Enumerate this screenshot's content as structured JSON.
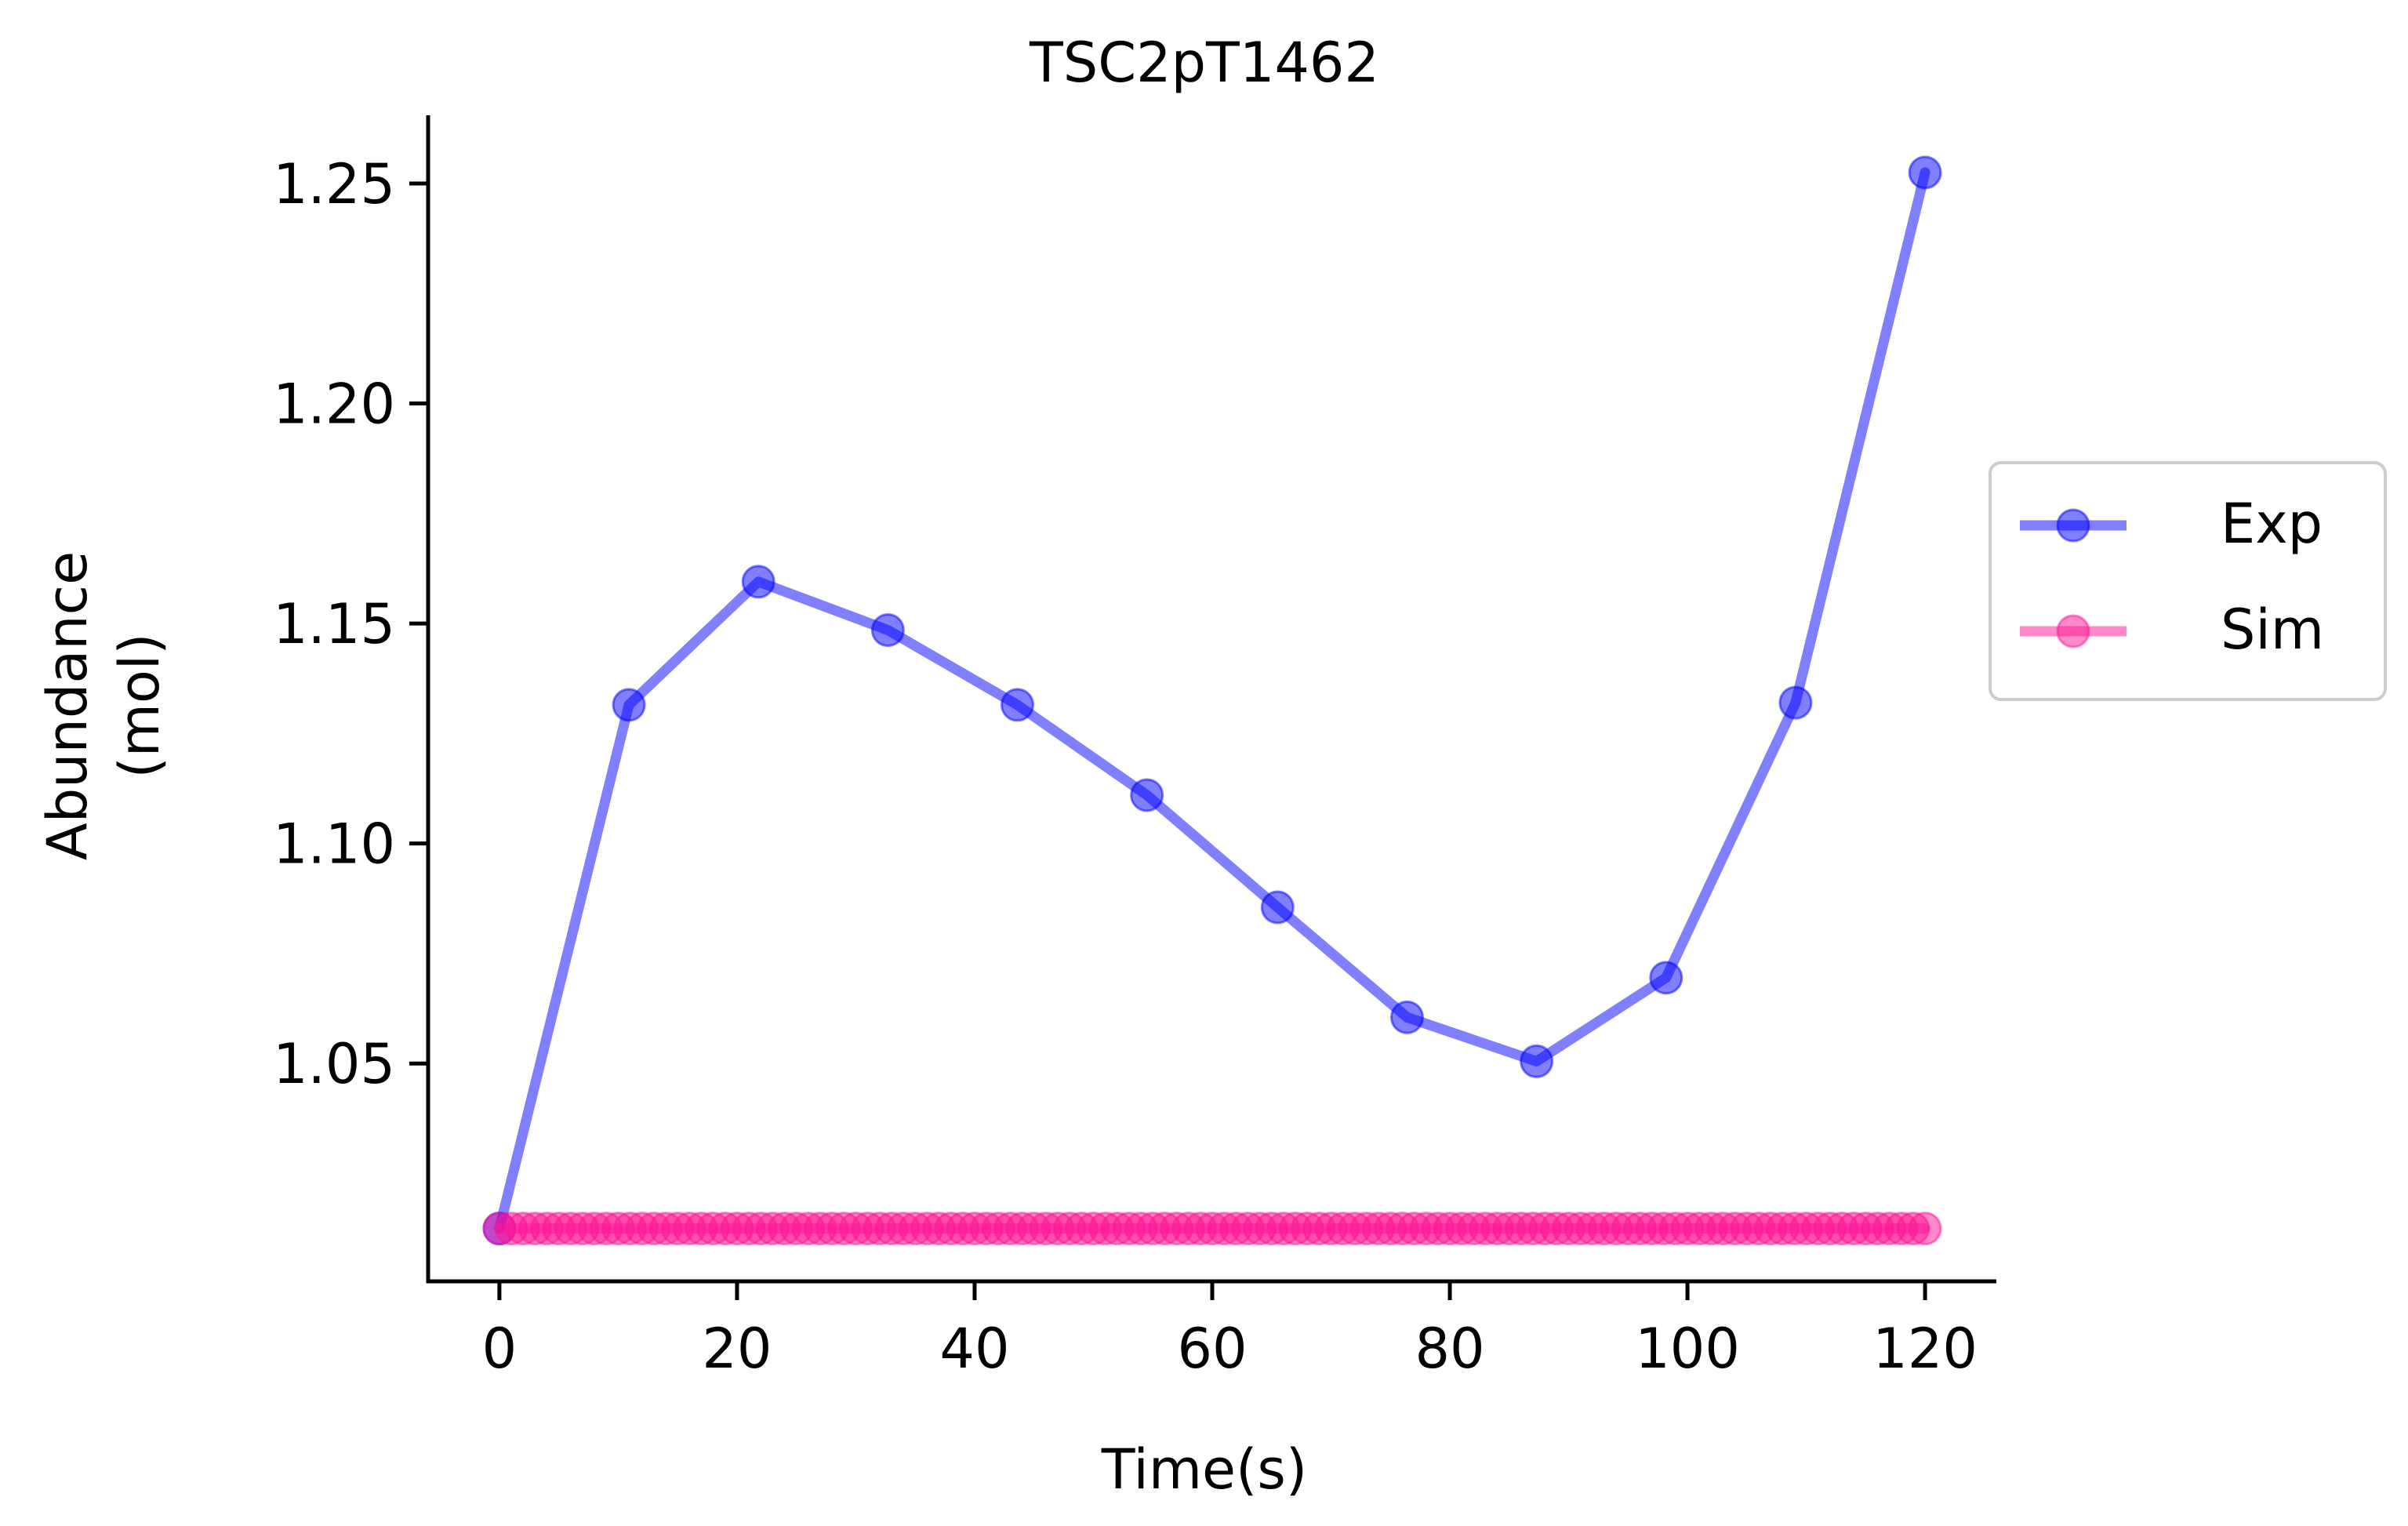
{
  "chart_data": {
    "type": "line",
    "title": "TSC2pT1462",
    "xlabel": "Time(s)",
    "ylabel_lines": [
      "Abundance",
      "(mol)"
    ],
    "xlim": [
      -6,
      126
    ],
    "ylim": [
      1.0005,
      1.2655
    ],
    "xticks": [
      0,
      20,
      40,
      60,
      80,
      100,
      120
    ],
    "xtick_labels": [
      "0",
      "20",
      "40",
      "60",
      "80",
      "100",
      "120"
    ],
    "yticks": [
      1.05,
      1.1,
      1.15,
      1.2,
      1.25
    ],
    "ytick_labels": [
      "1.05",
      "1.10",
      "1.15",
      "1.20",
      "1.25"
    ],
    "grid": false,
    "legend_position": "center-right, outside plot",
    "series": [
      {
        "name": "Exp",
        "color": "#0000ff",
        "x": [
          0,
          10.9,
          21.8,
          32.7,
          43.6,
          54.5,
          65.5,
          76.4,
          87.3,
          98.2,
          109.1,
          120
        ],
        "y": [
          1.0125,
          1.1315,
          1.1595,
          1.1485,
          1.1315,
          1.111,
          1.0855,
          1.0605,
          1.0505,
          1.0695,
          1.132,
          1.2525
        ]
      },
      {
        "name": "Sim",
        "color": "#ff1493",
        "x_start": 0,
        "x_end": 120,
        "x_step": 1,
        "y_constant": 1.0125
      }
    ]
  }
}
